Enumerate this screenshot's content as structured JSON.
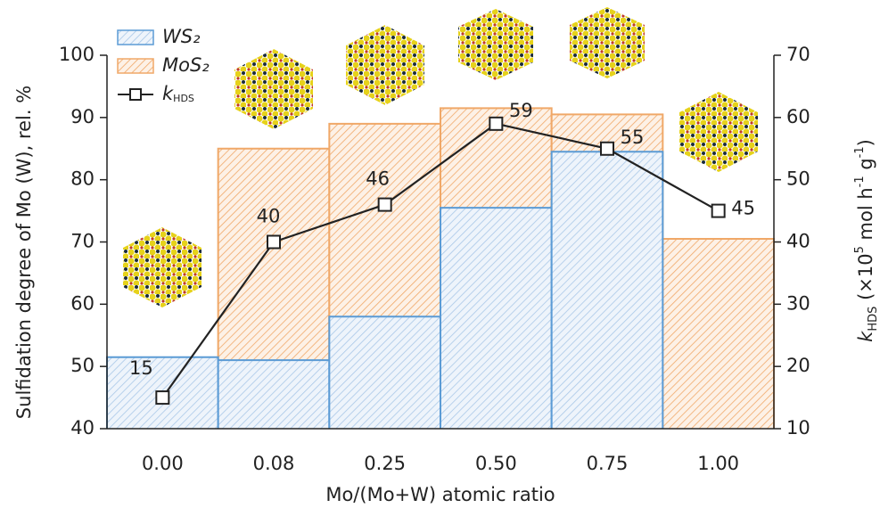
{
  "chart_data": {
    "type": "bar",
    "categories": [
      "0.00",
      "0.08",
      "0.25",
      "0.50",
      "0.75",
      "1.00"
    ],
    "xlabel": "Mo/(Mo+W) atomic ratio",
    "ylabel": "Sulfidation degree of Mo (W), rel. %",
    "y2label": [
      "k",
      "HDS",
      " (×10",
      "5",
      " mol h",
      "-1",
      " g",
      "-1",
      ")"
    ],
    "ylim": [
      40,
      100
    ],
    "yticks": [
      40,
      50,
      60,
      70,
      80,
      90,
      100
    ],
    "y2lim": [
      10,
      70
    ],
    "y2ticks": [
      10,
      20,
      30,
      40,
      50,
      60,
      70
    ],
    "series": [
      {
        "name": "MoS₂",
        "color": "#f0a868",
        "values": [
          null,
          85,
          89,
          91.5,
          90.5,
          70.5
        ]
      },
      {
        "name": "WS₂",
        "color": "#5b9bd5",
        "values": [
          51.5,
          51,
          58,
          75.5,
          84.5,
          null
        ]
      },
      {
        "type": "line",
        "name": "k",
        "name_sub": "HDS",
        "color": "#222222",
        "axis": "y2",
        "values": [
          15,
          40,
          46,
          59,
          55,
          45
        ]
      }
    ]
  }
}
